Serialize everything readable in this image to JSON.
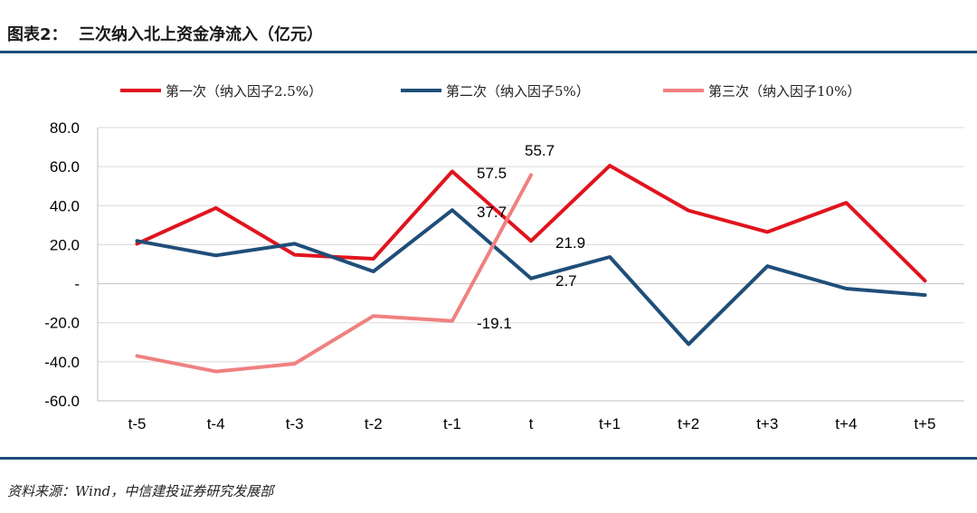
{
  "figure_title": "图表2：  三次纳入北上资金净流入（亿元）",
  "source_note": "资料来源：Wind，中信建投证券研究发展部",
  "colors": {
    "rule": "#1f4e79",
    "grid": "#d9d9d9"
  },
  "chart_data": {
    "type": "line",
    "title": "三次纳入北上资金净流入（亿元）",
    "xlabel": "",
    "ylabel": "",
    "categories": [
      "t-5",
      "t-4",
      "t-3",
      "t-2",
      "t-1",
      "t",
      "t+1",
      "t+2",
      "t+3",
      "t+4",
      "t+5"
    ],
    "ylim": [
      -60,
      80
    ],
    "yticks": [
      80,
      60,
      40,
      20,
      0,
      -20,
      -40,
      -60
    ],
    "ytick_labels": [
      "80.0",
      "60.0",
      "40.0",
      "20.0",
      "-",
      "-20.0",
      "-40.0",
      "-60.0"
    ],
    "grid": true,
    "legend_position": "top",
    "series": [
      {
        "name": "第一次（纳入因子2.5%）",
        "color": "#e0141e",
        "values": [
          20.5,
          38.8,
          14.8,
          12.8,
          57.5,
          21.9,
          60.5,
          37.5,
          26.5,
          41.5,
          1.5
        ]
      },
      {
        "name": "第二次（纳入因子5%）",
        "color": "#1f4e79",
        "values": [
          21.9,
          14.5,
          20.5,
          6.3,
          37.7,
          2.7,
          13.7,
          -31.0,
          9.0,
          -2.5,
          -5.8
        ]
      },
      {
        "name": "第三次（纳入因子10%）",
        "color": "#f08080",
        "values": [
          -37.0,
          -45.0,
          -41.0,
          -16.5,
          -19.1,
          55.7,
          null,
          null,
          null,
          null,
          null
        ]
      }
    ],
    "annotations": [
      {
        "text": "57.5"
      },
      {
        "text": "37.7"
      },
      {
        "text": "21.9"
      },
      {
        "text": "2.7"
      },
      {
        "text": "55.7"
      },
      {
        "text": "-19.1"
      }
    ]
  }
}
